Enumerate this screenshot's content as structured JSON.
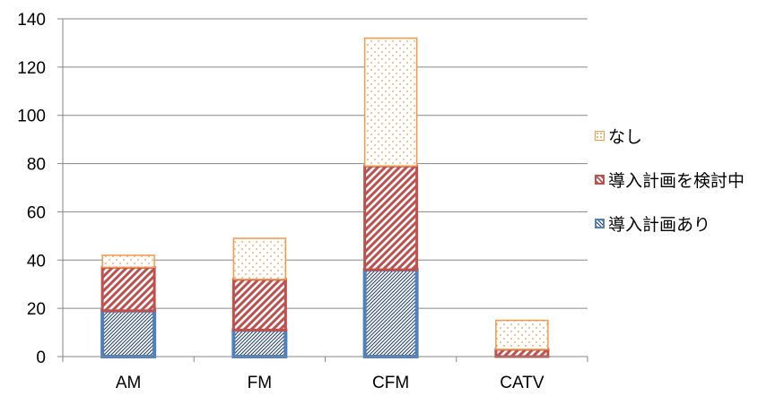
{
  "chart_data": {
    "type": "bar",
    "stacked": true,
    "categories": [
      "AM",
      "FM",
      "CFM",
      "CATV"
    ],
    "series": [
      {
        "name": "導入計画あり",
        "values": [
          19,
          11,
          36,
          0
        ],
        "color": "#4f81bd",
        "pattern": "diagonal-hatch"
      },
      {
        "name": "導入計画を検討中",
        "values": [
          18,
          21,
          43,
          3
        ],
        "color": "#c0504d",
        "pattern": "wide-diagonal-hatch"
      },
      {
        "name": "なし",
        "values": [
          5,
          17,
          53,
          12
        ],
        "color": "#f79646",
        "pattern": "dots"
      }
    ],
    "ylim": [
      0,
      140
    ],
    "yticks": [
      0,
      20,
      40,
      60,
      80,
      100,
      120,
      140
    ],
    "grid": true,
    "legend_position": "right",
    "legend_order": [
      "なし",
      "導入計画を検討中",
      "導入計画あり"
    ]
  }
}
